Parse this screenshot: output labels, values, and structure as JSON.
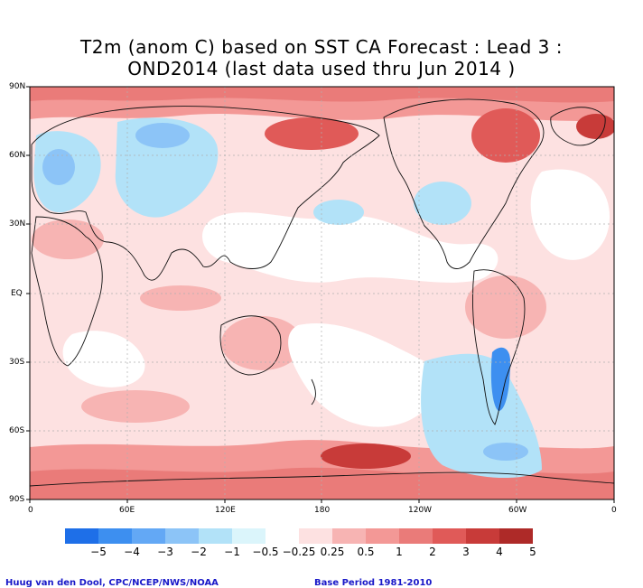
{
  "title": {
    "line1": "T2m (anom C) based on SST CA Forecast : Lead 3 :",
    "line2": "OND2014 (last data used thru Jun 2014 )"
  },
  "lat_labels": [
    "90N",
    "60N",
    "30N",
    "EQ",
    "30S",
    "60S",
    "90S"
  ],
  "lon_labels": [
    "0",
    "60E",
    "120E",
    "180",
    "120W",
    "60W",
    "0"
  ],
  "legend": {
    "labels": [
      "−5",
      "−4",
      "−3",
      "−2",
      "−1",
      "−0.5",
      "−0.25",
      "0.25",
      "0.5",
      "1",
      "2",
      "3",
      "4",
      "5"
    ],
    "colors": [
      "#1e6fe8",
      "#3d8ff0",
      "#63a8f5",
      "#8cc4f7",
      "#b2e2f8",
      "#dbf5fb",
      "#ffffff",
      "#fde1e1",
      "#f7b4b3",
      "#f39896",
      "#ea7b79",
      "#e05a58",
      "#c83b39",
      "#ae2a28"
    ]
  },
  "footer": {
    "left": "Huug van den Dool, CPC/NCEP/NWS/NOAA",
    "right": "Base Period 1981-2010"
  },
  "colors": {
    "border": "#000000",
    "gridline": "#b0b0b0",
    "coast": "#111111",
    "footer_text": "#1818c8"
  }
}
